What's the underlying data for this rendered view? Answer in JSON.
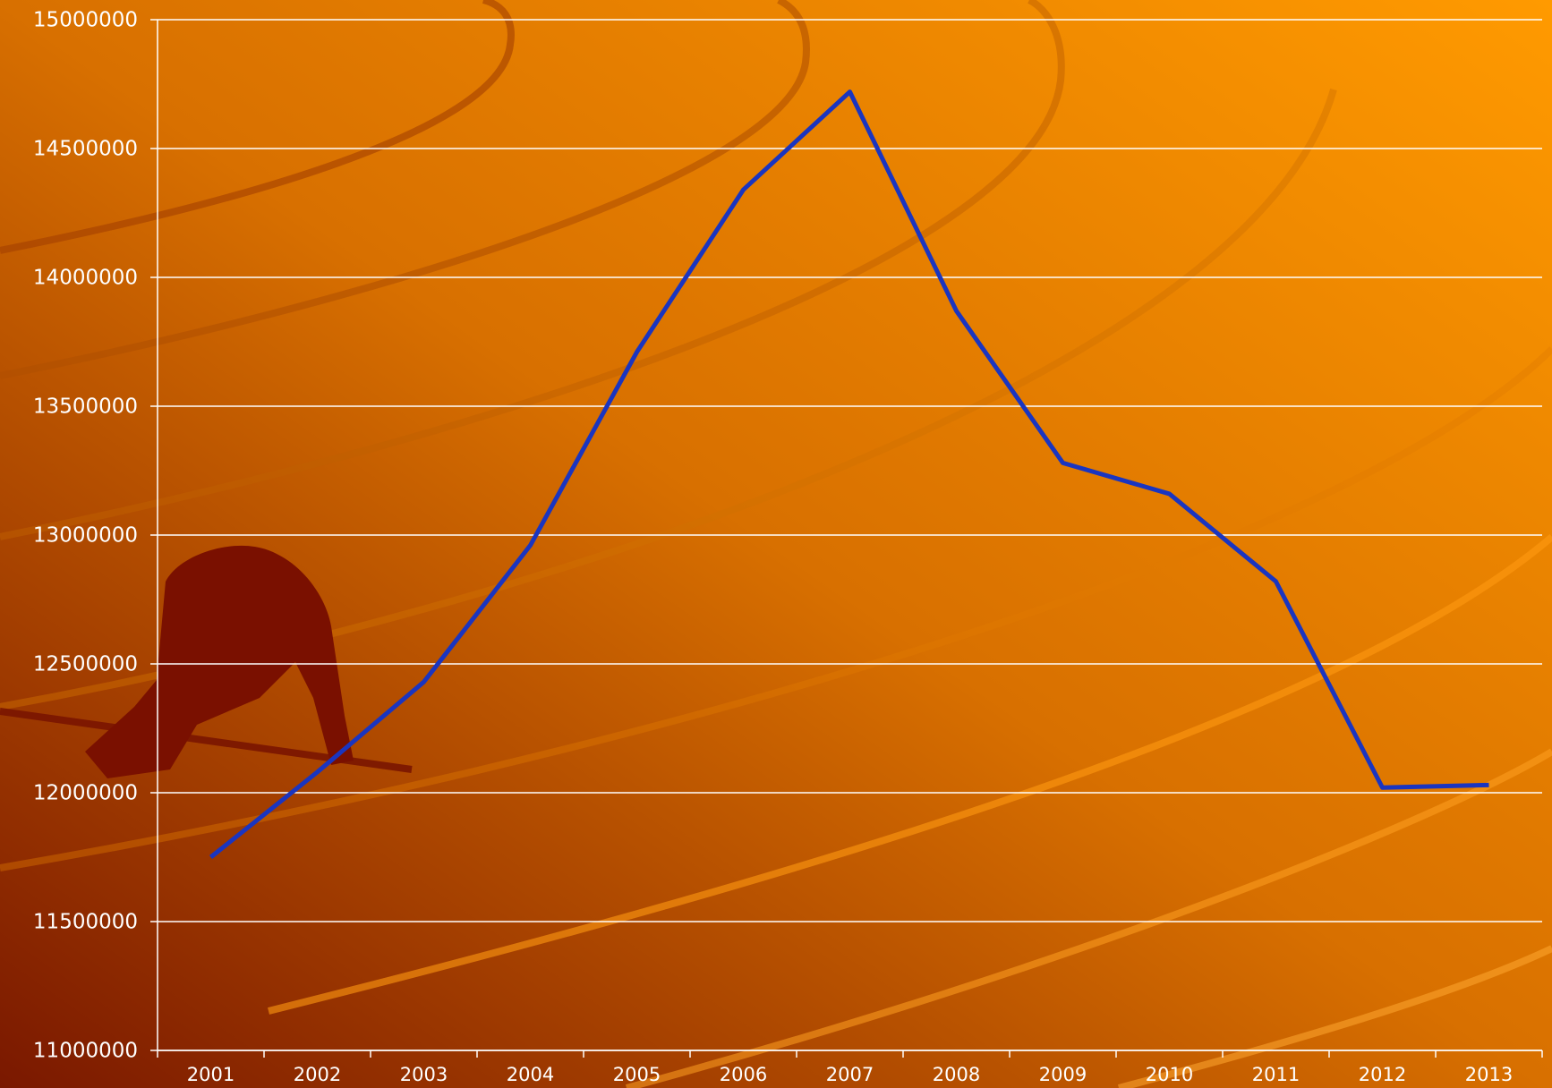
{
  "chart_data": {
    "type": "line",
    "categories": [
      "2001",
      "2002",
      "2003",
      "2004",
      "2005",
      "2006",
      "2007",
      "2008",
      "2009",
      "2010",
      "2011",
      "2012",
      "2013"
    ],
    "series": [
      {
        "color": "#1a35c0",
        "values": [
          11750000,
          12080000,
          12430000,
          12960000,
          13710000,
          14340000,
          14720000,
          13870000,
          13280000,
          13160000,
          12820000,
          12020000,
          12030000
        ]
      }
    ],
    "ylim": [
      11000000,
      15000000
    ],
    "yticks": [
      11000000,
      11500000,
      12000000,
      12500000,
      13000000,
      13500000,
      14000000,
      14500000,
      15000000
    ],
    "grid": true
  }
}
